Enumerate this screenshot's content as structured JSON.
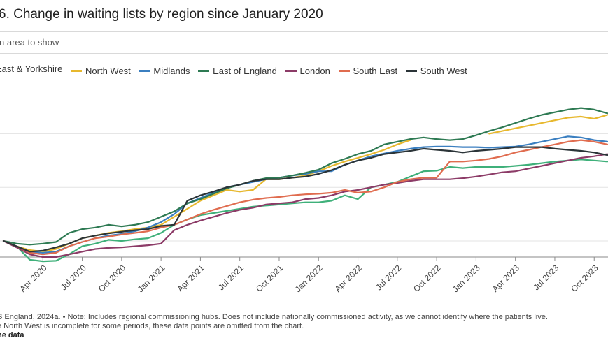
{
  "header": {
    "title": "6. Change in waiting lists by region since January 2020",
    "select_label": "n area to show"
  },
  "colors": {
    "North East & Yorkshire": "#e38a2f",
    "North West": "#e7b82e",
    "Midlands": "#3b7fc0",
    "East of England": "#2e7a53",
    "London": "#8c3b67",
    "South East": "#e06c4f",
    "South West": "#2b3438",
    "grid": "#e3e3e3",
    "axis": "#8a8a8a"
  },
  "legend": {
    "items": [
      {
        "label": "East & Yorkshire",
        "color": "#3fb07a"
      },
      {
        "label": "North West",
        "color": "#e7b82e"
      },
      {
        "label": "Midlands",
        "color": "#3b7fc0"
      },
      {
        "label": "East of England",
        "color": "#2e7a53"
      },
      {
        "label": "London",
        "color": "#8c3b67"
      },
      {
        "label": "South East",
        "color": "#e06c4f"
      },
      {
        "label": "South West",
        "color": "#2b3438"
      }
    ]
  },
  "chart_data": {
    "type": "line",
    "title": "6. Change in waiting lists by region since January 2020",
    "xlabel": "",
    "ylabel": "",
    "x_tick_labels": [
      "Apr 2020",
      "Jul 2020",
      "Oct 2020",
      "Jan 2021",
      "Apr 2021",
      "Jul 2021",
      "Oct 2021",
      "Jan 2022",
      "Apr 2022",
      "Jul 2022",
      "Oct 2022",
      "Jan 2023",
      "Apr 2023",
      "Jul 2023",
      "Oct 2023"
    ],
    "x_range_months": [
      0,
      46
    ],
    "ylim": [
      -0.3,
      2.8
    ],
    "grid": true,
    "legend_position": "top-left",
    "series": [
      {
        "name": "East & Yorkshire",
        "color": "#3fb07a",
        "values": [
          0,
          -0.1,
          -0.35,
          -0.38,
          -0.37,
          -0.25,
          -0.1,
          -0.05,
          0.02,
          0.0,
          0.03,
          0.05,
          0.15,
          0.3,
          0.4,
          0.48,
          0.52,
          0.56,
          0.6,
          0.64,
          0.66,
          0.68,
          0.7,
          0.72,
          0.72,
          0.75,
          0.85,
          0.78,
          1.0,
          1.05,
          1.1,
          1.2,
          1.3,
          1.31,
          1.38,
          1.36,
          1.38,
          1.38,
          1.38,
          1.4,
          1.42,
          1.45,
          1.48,
          1.5,
          1.52,
          1.5,
          1.48
        ]
      },
      {
        "name": "North West",
        "color": "#e7b82e",
        "values": [
          0,
          -0.1,
          -0.17,
          -0.2,
          -0.15,
          -0.05,
          0.05,
          0.1,
          0.15,
          0.18,
          0.22,
          0.25,
          0.3,
          0.45,
          0.6,
          0.75,
          0.85,
          0.95,
          0.92,
          0.95,
          1.15,
          1.15,
          1.18,
          1.22,
          1.3,
          1.4,
          1.48,
          1.55,
          1.62,
          1.7,
          1.8,
          1.88,
          null,
          null,
          null,
          null,
          null,
          2.0,
          2.05,
          2.1,
          2.15,
          2.2,
          2.25,
          2.3,
          2.32,
          2.28,
          2.35
        ]
      },
      {
        "name": "Midlands",
        "color": "#3b7fc0",
        "values": [
          0,
          -0.1,
          -0.2,
          -0.22,
          -0.2,
          -0.1,
          -0.02,
          0.05,
          0.1,
          0.13,
          0.18,
          0.25,
          0.35,
          0.5,
          0.7,
          0.8,
          0.9,
          1.0,
          1.05,
          1.1,
          1.15,
          1.18,
          1.22,
          1.25,
          1.3,
          1.3,
          1.42,
          1.5,
          1.58,
          1.63,
          1.68,
          1.72,
          1.75,
          1.76,
          1.76,
          1.75,
          1.75,
          1.74,
          1.75,
          1.76,
          1.8,
          1.85,
          1.9,
          1.95,
          1.93,
          1.88,
          1.85
        ]
      },
      {
        "name": "East of England",
        "color": "#2e7a53",
        "values": [
          0,
          -0.05,
          -0.07,
          -0.05,
          -0.02,
          0.15,
          0.22,
          0.25,
          0.3,
          0.27,
          0.3,
          0.35,
          0.45,
          0.55,
          0.7,
          0.78,
          0.88,
          0.98,
          1.05,
          1.12,
          1.17,
          1.18,
          1.22,
          1.27,
          1.33,
          1.45,
          1.53,
          1.62,
          1.68,
          1.8,
          1.85,
          1.9,
          1.93,
          1.9,
          1.88,
          1.9,
          1.97,
          2.05,
          2.12,
          2.2,
          2.28,
          2.35,
          2.4,
          2.45,
          2.48,
          2.45,
          2.38
        ]
      },
      {
        "name": "London",
        "color": "#8c3b67",
        "values": [
          0,
          -0.12,
          -0.25,
          -0.3,
          -0.3,
          -0.25,
          -0.2,
          -0.15,
          -0.13,
          -0.12,
          -0.1,
          -0.08,
          -0.05,
          0.2,
          0.3,
          0.38,
          0.45,
          0.52,
          0.58,
          0.62,
          0.68,
          0.7,
          0.72,
          0.78,
          0.8,
          0.85,
          0.92,
          0.95,
          1.0,
          1.05,
          1.08,
          1.12,
          1.15,
          1.15,
          1.15,
          1.17,
          1.2,
          1.24,
          1.28,
          1.3,
          1.35,
          1.4,
          1.45,
          1.5,
          1.55,
          1.58,
          1.62
        ]
      },
      {
        "name": "South East",
        "color": "#e06c4f",
        "values": [
          0,
          -0.1,
          -0.22,
          -0.25,
          -0.22,
          -0.1,
          -0.02,
          0.05,
          0.08,
          0.12,
          0.15,
          0.18,
          0.25,
          0.3,
          0.4,
          0.5,
          0.58,
          0.65,
          0.72,
          0.77,
          0.8,
          0.82,
          0.85,
          0.87,
          0.88,
          0.9,
          0.95,
          0.9,
          0.92,
          1.0,
          1.1,
          1.15,
          1.18,
          1.18,
          1.48,
          1.48,
          1.5,
          1.53,
          1.58,
          1.65,
          1.7,
          1.75,
          1.8,
          1.85,
          1.88,
          1.85,
          1.8
        ]
      },
      {
        "name": "South West",
        "color": "#2b3438",
        "values": [
          0,
          -0.1,
          -0.2,
          -0.18,
          -0.12,
          -0.05,
          0.05,
          0.1,
          0.14,
          0.17,
          0.2,
          0.22,
          0.28,
          0.3,
          0.75,
          0.85,
          0.92,
          1.0,
          1.05,
          1.12,
          1.15,
          1.15,
          1.18,
          1.2,
          1.25,
          1.32,
          1.42,
          1.5,
          1.55,
          1.62,
          1.65,
          1.68,
          1.72,
          1.7,
          1.68,
          1.65,
          1.68,
          1.7,
          1.72,
          1.75,
          1.75,
          1.75,
          1.72,
          1.7,
          1.68,
          1.65,
          1.6
        ]
      }
    ]
  },
  "footer": {
    "source": "S England, 2024a. • Note: Includes regional commissioning hubs. Does not include nationally commissioned activity, as we cannot identify where the patients live.",
    "note": "e North West is incomplete for some periods, these data points are omitted from the chart.",
    "link": "he data"
  }
}
